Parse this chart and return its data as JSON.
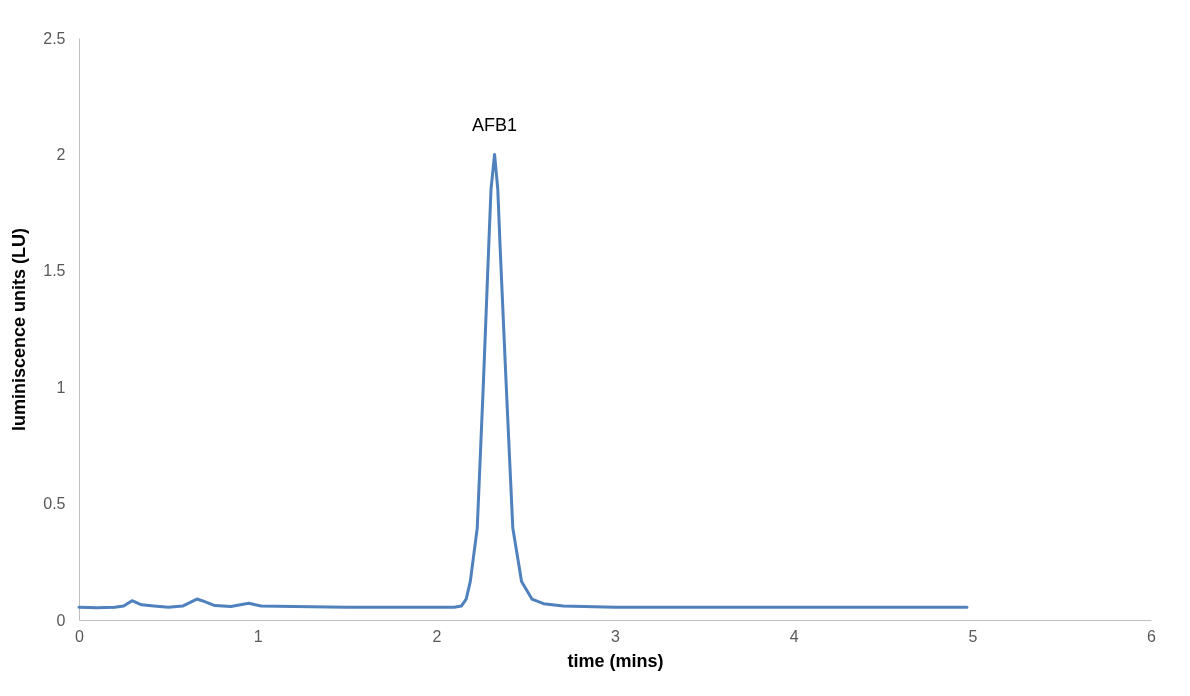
{
  "chart_data": {
    "type": "line",
    "xlabel": "time (mins)",
    "ylabel": "luminiscence units (LU)",
    "annotations": [
      {
        "text": "AFB1",
        "x": 2.326,
        "y": 2.0
      }
    ],
    "xlim": [
      0,
      6
    ],
    "xticks": [
      0,
      1,
      2,
      3,
      4,
      5,
      6
    ],
    "ylim": [
      0,
      2.5
    ],
    "yticks": [
      0,
      0.5,
      1,
      1.5,
      2,
      2.5
    ],
    "grid": false,
    "marker": "none",
    "line_style": "solid",
    "series": [
      {
        "color": "#4f81bd",
        "x": [
          0,
          0.1,
          0.2,
          0.25,
          0.297,
          0.35,
          0.42,
          0.5,
          0.58,
          0.62,
          0.66,
          0.7,
          0.76,
          0.85,
          0.95,
          1.02,
          1.2,
          1.5,
          1.8,
          2.0,
          2.1,
          2.14,
          2.167,
          2.19,
          2.229,
          2.263,
          2.294,
          2.306,
          2.326,
          2.344,
          2.356,
          2.391,
          2.428,
          2.477,
          2.535,
          2.6,
          2.71,
          3.0,
          3.5,
          4.0,
          4.5,
          4.97
        ],
        "values": [
          0.055,
          0.053,
          0.055,
          0.06,
          0.083,
          0.065,
          0.06,
          0.055,
          0.06,
          0.075,
          0.09,
          0.08,
          0.062,
          0.058,
          0.072,
          0.06,
          0.058,
          0.055,
          0.055,
          0.055,
          0.055,
          0.06,
          0.09,
          0.165,
          0.395,
          1.01,
          1.62,
          1.85,
          2.0,
          1.85,
          1.62,
          1.01,
          0.395,
          0.165,
          0.09,
          0.07,
          0.06,
          0.055,
          0.055,
          0.055,
          0.055,
          0.055
        ]
      }
    ]
  }
}
